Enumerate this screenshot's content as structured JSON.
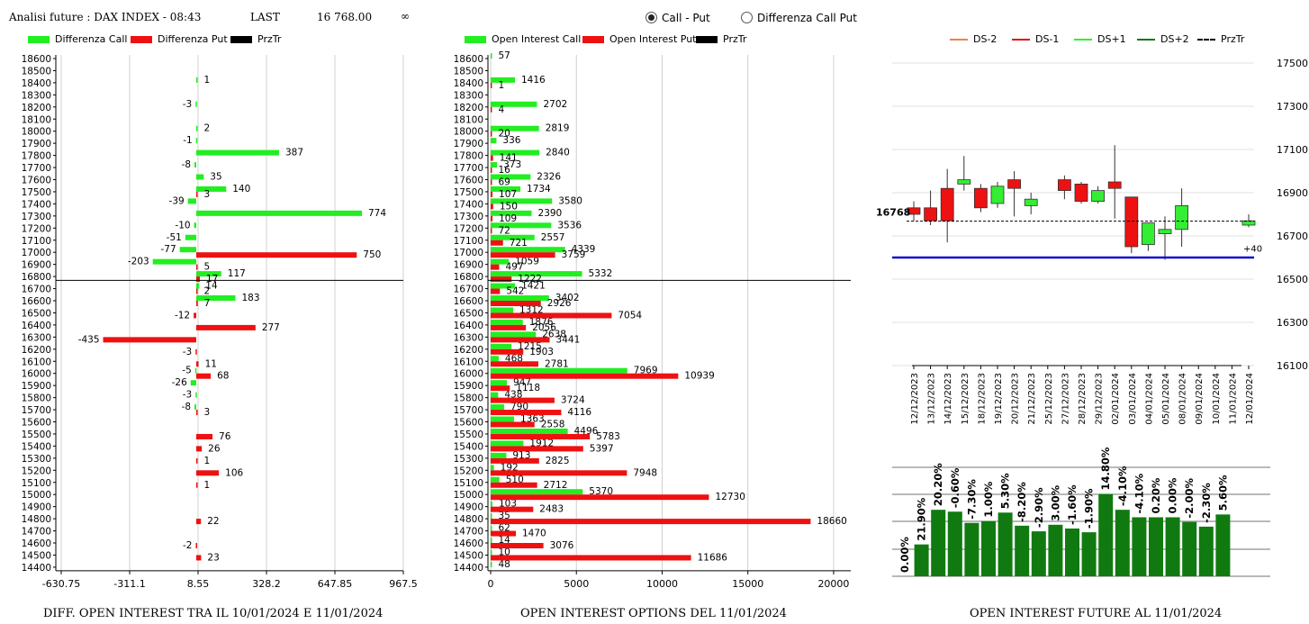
{
  "header": {
    "title": "Analisi future : DAX INDEX - 08:43",
    "last_label": "LAST",
    "last_value": "16 768.00",
    "infinity": "∞"
  },
  "mode_options": [
    {
      "label": "Call - Put",
      "selected": true
    },
    {
      "label": "Differenza Call Put",
      "selected": false
    }
  ],
  "colors": {
    "call": "#22ee22",
    "put": "#ee1111",
    "prztr": "#000000",
    "future_bar": "#107a10",
    "level_line": "#1010cc"
  },
  "strikes": [
    18600,
    18500,
    18400,
    18300,
    18200,
    18100,
    18000,
    17900,
    17800,
    17700,
    17600,
    17500,
    17400,
    17300,
    17200,
    17100,
    17000,
    16900,
    16800,
    16700,
    16600,
    16500,
    16400,
    16300,
    16200,
    16100,
    16000,
    15900,
    15800,
    15700,
    15600,
    15500,
    15400,
    15300,
    15200,
    15100,
    15000,
    14900,
    14800,
    14700,
    14600,
    14500,
    14400
  ],
  "chart_data": [
    {
      "type": "bar",
      "orientation": "horizontal",
      "legend": [
        "Differenza Call",
        "Differenza Put",
        "PrzTr"
      ],
      "xticks": [
        "-630.75",
        "-311.1",
        "8.55",
        "328.2",
        "647.85",
        "967.5"
      ],
      "xlim": [
        -630.75,
        967.5
      ],
      "prztr": 16768,
      "footer": "DIFF. OPEN INTEREST TRA IL 10/01/2024 E 11/01/2024",
      "call": {
        "18400": 1,
        "18200": -3,
        "18000": 2,
        "17900": -1,
        "17800": 387,
        "17700": -8,
        "17600": 35,
        "17500": 140,
        "17400": -39,
        "17300": 774,
        "17200": -10,
        "17100": -51,
        "17000": -77,
        "16900": -203,
        "16800": 117,
        "16700": 14,
        "16600": 183,
        "16000": -5,
        "15900": -26,
        "15800": -3,
        "15700": -8
      },
      "put": {
        "17500": 3,
        "17000": 750,
        "16900": 5,
        "16800": 17,
        "16700": 2,
        "16600": 7,
        "16500": -12,
        "16400": 277,
        "16300": -435,
        "16200": -3,
        "16100": 11,
        "16000": 68,
        "15700": 3,
        "15500": 76,
        "15400": 26,
        "15300": 1,
        "15200": 106,
        "15100": 1,
        "14800": 22,
        "14600": -2,
        "14500": 23
      }
    },
    {
      "type": "bar",
      "orientation": "horizontal",
      "legend": [
        "Open Interest Call",
        "Open Interest Put",
        "PrzTr"
      ],
      "xticks": [
        "0",
        "5000",
        "10000",
        "15000",
        "20000"
      ],
      "xlim": [
        0,
        21000
      ],
      "prztr": 16768,
      "footer": "OPEN INTEREST OPTIONS DEL 11/01/2024",
      "call": {
        "18600": 57,
        "18400": 1416,
        "18200": 2702,
        "18000": 2819,
        "17900": 336,
        "17800": 2840,
        "17700": 373,
        "17600": 2326,
        "17500": 1734,
        "17400": 3580,
        "17300": 2390,
        "17200": 3536,
        "17100": 2557,
        "17000": 4339,
        "16900": 1059,
        "16800": 5332,
        "16700": 1421,
        "16600": 3402,
        "16500": 1312,
        "16400": 1876,
        "16300": 2638,
        "16200": 1215,
        "16100": 468,
        "16000": 7969,
        "15900": 947,
        "15800": 438,
        "15700": 790,
        "15600": 1363,
        "15500": 4496,
        "15400": 1912,
        "15300": 913,
        "15200": 192,
        "15100": 510,
        "15000": 5370,
        "14900": 103,
        "14800": 35,
        "14700": 62,
        "14600": 14,
        "14500": 10,
        "14400": 48
      },
      "put": {
        "18400": 1,
        "18200": 4,
        "18000": 20,
        "17800": 141,
        "17700": 16,
        "17600": 69,
        "17500": 107,
        "17400": 150,
        "17300": 109,
        "17200": 72,
        "17100": 721,
        "17000": 3759,
        "16900": 497,
        "16800": 1222,
        "16700": 542,
        "16600": 2926,
        "16500": 7054,
        "16400": 2056,
        "16300": 3441,
        "16200": 1903,
        "16100": 2781,
        "16000": 10939,
        "15900": 1118,
        "15800": 3724,
        "15700": 4116,
        "15600": 2558,
        "15500": 5783,
        "15400": 5397,
        "15300": 2825,
        "15200": 7948,
        "15100": 2712,
        "15000": 12730,
        "14900": 2483,
        "14800": 18660,
        "14700": 1470,
        "14600": 3076,
        "14500": 11686
      }
    },
    {
      "type": "candlestick",
      "legend": [
        "DS-2",
        "DS-1",
        "DS+1",
        "DS+2",
        "PrzTr"
      ],
      "legend_colors": [
        "#f08050",
        "#dd1111",
        "#33ee33",
        "#117711",
        "#000000"
      ],
      "yticks": [
        17500,
        17300,
        17100,
        16900,
        16700,
        16500,
        16300,
        16100
      ],
      "ylim": [
        16100,
        17550
      ],
      "last_label": "16768",
      "last_value": 16768,
      "offset_label": "+40",
      "level_line": 16600,
      "dates": [
        "12/12/2023",
        "13/12/2023",
        "14/12/2023",
        "15/12/2023",
        "18/12/2023",
        "19/12/2023",
        "20/12/2023",
        "21/12/2023",
        "25/12/2023",
        "27/12/2023",
        "28/12/2023",
        "29/12/2023",
        "02/01/2024",
        "03/01/2024",
        "04/01/2024",
        "05/01/2024",
        "08/01/2024",
        "09/01/2024",
        "10/01/2024",
        "11/01/2024",
        "12/01/2024"
      ],
      "candles": [
        {
          "o": 16830,
          "c": 16800,
          "h": 16860,
          "l": 16770,
          "col": "red"
        },
        {
          "o": 16830,
          "c": 16770,
          "h": 16910,
          "l": 16750,
          "col": "red"
        },
        {
          "o": 16920,
          "c": 16770,
          "h": 17010,
          "l": 16670,
          "col": "red"
        },
        {
          "o": 16940,
          "c": 16960,
          "h": 17070,
          "l": 16910,
          "col": "green"
        },
        {
          "o": 16920,
          "c": 16830,
          "h": 16940,
          "l": 16810,
          "col": "red"
        },
        {
          "o": 16850,
          "c": 16930,
          "h": 16950,
          "l": 16830,
          "col": "green"
        },
        {
          "o": 16960,
          "c": 16920,
          "h": 17000,
          "l": 16790,
          "col": "red"
        },
        {
          "o": 16840,
          "c": 16870,
          "h": 16900,
          "l": 16800,
          "col": "green"
        },
        null,
        {
          "o": 16960,
          "c": 16910,
          "h": 16980,
          "l": 16870,
          "col": "red"
        },
        {
          "o": 16940,
          "c": 16860,
          "h": 16950,
          "l": 16850,
          "col": "red"
        },
        {
          "o": 16860,
          "c": 16910,
          "h": 16930,
          "l": 16850,
          "col": "green"
        },
        {
          "o": 16950,
          "c": 16920,
          "h": 17120,
          "l": 16780,
          "col": "red"
        },
        {
          "o": 16880,
          "c": 16650,
          "h": 16880,
          "l": 16620,
          "col": "red"
        },
        {
          "o": 16660,
          "c": 16760,
          "h": 16760,
          "l": 16630,
          "col": "green"
        },
        {
          "o": 16710,
          "c": 16730,
          "h": 16790,
          "l": 16590,
          "col": "green"
        },
        {
          "o": 16730,
          "c": 16840,
          "h": 16920,
          "l": 16650,
          "col": "green"
        },
        null,
        null,
        null,
        {
          "o": 16750,
          "c": 16770,
          "h": 16800,
          "l": 16740,
          "col": "green"
        }
      ],
      "footer": "OPEN INTEREST FUTURE AL 11/01/2024",
      "oi_labels": [
        "0.00%",
        "21.90%",
        "20.20%",
        "-0.60%",
        "-7.30%",
        "1.00%",
        "5.30%",
        "-8.20%",
        "-2.90%",
        "3.00%",
        "-1.60%",
        "-1.90%",
        "14.80%",
        "-4.10%",
        "-4.10%",
        "0.20%",
        "0.00%",
        "-2.00%",
        "-2.30%",
        "5.60%"
      ],
      "oi_levels": [
        0,
        0.34,
        0.71,
        0.69,
        0.57,
        0.59,
        0.68,
        0.54,
        0.48,
        0.55,
        0.51,
        0.47,
        0.88,
        0.71,
        0.63,
        0.63,
        0.63,
        0.58,
        0.53,
        0.66
      ]
    }
  ]
}
